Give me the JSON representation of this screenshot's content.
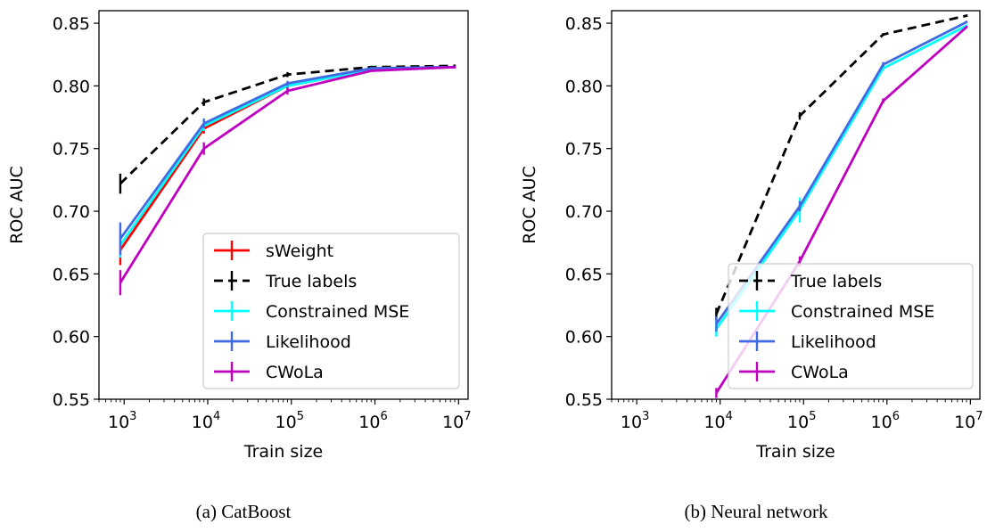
{
  "chart_data": [
    {
      "type": "line",
      "caption": "(a) CatBoost",
      "xlabel": "Train size",
      "ylabel": "ROC AUC",
      "xscale": "log",
      "xlim": [
        500,
        13000000
      ],
      "ylim": [
        0.55,
        0.86
      ],
      "xticks": [
        {
          "base": "10",
          "exp": "3",
          "value": 1000
        },
        {
          "base": "10",
          "exp": "4",
          "value": 10000
        },
        {
          "base": "10",
          "exp": "5",
          "value": 100000
        },
        {
          "base": "10",
          "exp": "6",
          "value": 1000000
        },
        {
          "base": "10",
          "exp": "7",
          "value": 10000000
        }
      ],
      "yticks": [
        "0.55",
        "0.60",
        "0.65",
        "0.70",
        "0.75",
        "0.80",
        "0.85"
      ],
      "legend_position": "lower right",
      "series": [
        {
          "name": "sWeight",
          "color": "#ff0000",
          "dash": "solid",
          "x": [
            900,
            9000,
            90000,
            900000,
            9000000
          ],
          "y": [
            0.669,
            0.766,
            0.8,
            0.813,
            0.815
          ],
          "err": [
            0.012,
            0.004,
            0.003,
            0.001,
            0.001
          ]
        },
        {
          "name": "True labels",
          "color": "#000000",
          "dash": "dashed",
          "x": [
            900,
            9000,
            90000,
            900000,
            9000000
          ],
          "y": [
            0.722,
            0.787,
            0.809,
            0.815,
            0.816
          ],
          "err": [
            0.008,
            0.003,
            0.002,
            0.001,
            0.001
          ]
        },
        {
          "name": "Constrained MSE",
          "color": "#00ffff",
          "dash": "solid",
          "x": [
            900,
            9000,
            90000,
            900000,
            9000000
          ],
          "y": [
            0.673,
            0.768,
            0.8,
            0.813,
            0.815
          ],
          "err": [
            0.01,
            0.004,
            0.002,
            0.001,
            0.001
          ]
        },
        {
          "name": "Likelihood",
          "color": "#4169e1",
          "dash": "solid",
          "x": [
            900,
            9000,
            90000,
            900000,
            9000000
          ],
          "y": [
            0.678,
            0.77,
            0.802,
            0.814,
            0.815
          ],
          "err": [
            0.013,
            0.004,
            0.002,
            0.001,
            0.001
          ]
        },
        {
          "name": "CWoLa",
          "color": "#bf00bf",
          "dash": "solid",
          "x": [
            900,
            9000,
            90000,
            900000,
            9000000
          ],
          "y": [
            0.643,
            0.75,
            0.796,
            0.812,
            0.815
          ],
          "err": [
            0.01,
            0.005,
            0.003,
            0.001,
            0.001
          ]
        }
      ]
    },
    {
      "type": "line",
      "caption": "(b) Neural network",
      "xlabel": "Train size",
      "ylabel": "ROC AUC",
      "xscale": "log",
      "xlim": [
        500,
        13000000
      ],
      "ylim": [
        0.55,
        0.86
      ],
      "xticks": [
        {
          "base": "10",
          "exp": "3",
          "value": 1000
        },
        {
          "base": "10",
          "exp": "4",
          "value": 10000
        },
        {
          "base": "10",
          "exp": "5",
          "value": 100000
        },
        {
          "base": "10",
          "exp": "6",
          "value": 1000000
        },
        {
          "base": "10",
          "exp": "7",
          "value": 10000000
        }
      ],
      "yticks": [
        "0.55",
        "0.60",
        "0.65",
        "0.70",
        "0.75",
        "0.80",
        "0.85"
      ],
      "legend_position": "lower right",
      "series": [
        {
          "name": "True labels",
          "color": "#000000",
          "dash": "dashed",
          "x": [
            9000,
            90000,
            900000,
            9000000
          ],
          "y": [
            0.618,
            0.776,
            0.841,
            0.856
          ],
          "err": [
            0.005,
            0.003,
            0.001,
            0.001
          ]
        },
        {
          "name": "Constrained MSE",
          "color": "#00ffff",
          "dash": "solid",
          "x": [
            9000,
            90000,
            900000,
            9000000
          ],
          "y": [
            0.606,
            0.701,
            0.814,
            0.848
          ],
          "err": [
            0.006,
            0.01,
            0.002,
            0.001
          ]
        },
        {
          "name": "Likelihood",
          "color": "#4169e1",
          "dash": "solid",
          "x": [
            9000,
            90000,
            900000,
            9000000
          ],
          "y": [
            0.61,
            0.704,
            0.817,
            0.851
          ],
          "err": [
            0.006,
            0.004,
            0.002,
            0.001
          ]
        },
        {
          "name": "CWoLa",
          "color": "#bf00bf",
          "dash": "solid",
          "x": [
            9000,
            90000,
            900000,
            9000000
          ],
          "y": [
            0.555,
            0.66,
            0.788,
            0.847
          ],
          "err": [
            0.004,
            0.004,
            0.002,
            0.001
          ]
        }
      ]
    }
  ]
}
